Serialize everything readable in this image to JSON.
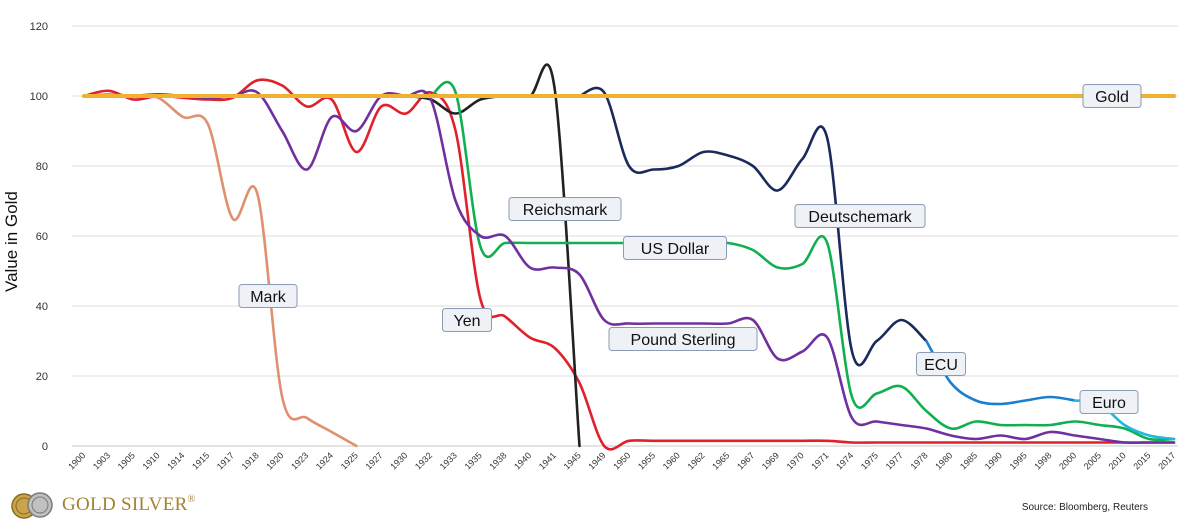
{
  "chart_data": {
    "type": "line",
    "ylabel": "Value in Gold",
    "ylim": [
      0,
      120
    ],
    "yticks": [
      0,
      20,
      40,
      60,
      80,
      100,
      120
    ],
    "grid": true,
    "x_categories": [
      "1900",
      "1903",
      "1905",
      "1910",
      "1914",
      "1915",
      "1917",
      "1918",
      "1920",
      "1923",
      "1924",
      "1925",
      "1927",
      "1930",
      "1932",
      "1933",
      "1935",
      "1938",
      "1940",
      "1941",
      "1945",
      "1949",
      "1950",
      "1955",
      "1960",
      "1962",
      "1965",
      "1967",
      "1969",
      "1970",
      "1971",
      "1974",
      "1975",
      "1977",
      "1978",
      "1980",
      "1985",
      "1990",
      "1995",
      "1998",
      "2000",
      "2005",
      "2010",
      "2015",
      "2017"
    ],
    "series": [
      {
        "name": "Gold",
        "color": "#f0b030",
        "labelPos": [
          1112,
          96
        ],
        "points": [
          [
            0,
            100
          ],
          [
            44,
            100
          ]
        ]
      },
      {
        "name": "Mark",
        "color": "#e09070",
        "labelPos": [
          268,
          296
        ],
        "points": [
          [
            0,
            100
          ],
          [
            1,
            100.5
          ],
          [
            2,
            100
          ],
          [
            3,
            99.5
          ],
          [
            4,
            94
          ],
          [
            5,
            92
          ],
          [
            6,
            65
          ],
          [
            7,
            72
          ],
          [
            8,
            14
          ],
          [
            9,
            8
          ],
          [
            10,
            4
          ],
          [
            11,
            0
          ]
        ]
      },
      {
        "name": "Yen",
        "color": "#e0202a",
        "labelPos": [
          467,
          320
        ],
        "points": [
          [
            0,
            100
          ],
          [
            1,
            101.5
          ],
          [
            2,
            99
          ],
          [
            3,
            100
          ],
          [
            4,
            99.5
          ],
          [
            5,
            99
          ],
          [
            6,
            99.5
          ],
          [
            7,
            104.5
          ],
          [
            8,
            103
          ],
          [
            9,
            97
          ],
          [
            10,
            99
          ],
          [
            11,
            84
          ],
          [
            12,
            97
          ],
          [
            13,
            95
          ],
          [
            14,
            101
          ],
          [
            15,
            90
          ],
          [
            16,
            42
          ],
          [
            17,
            37
          ],
          [
            18,
            31
          ],
          [
            19,
            28
          ],
          [
            20,
            18
          ],
          [
            21,
            0
          ],
          [
            22,
            1.5
          ],
          [
            23,
            1.5
          ],
          [
            24,
            1.5
          ],
          [
            25,
            1.5
          ],
          [
            26,
            1.5
          ],
          [
            27,
            1.5
          ],
          [
            28,
            1.5
          ],
          [
            29,
            1.5
          ],
          [
            30,
            1.5
          ],
          [
            31,
            1
          ],
          [
            32,
            1
          ],
          [
            33,
            1
          ],
          [
            34,
            1
          ],
          [
            35,
            1
          ],
          [
            36,
            1
          ],
          [
            37,
            1
          ],
          [
            38,
            1
          ],
          [
            39,
            1
          ],
          [
            40,
            1
          ],
          [
            41,
            1
          ],
          [
            42,
            1
          ],
          [
            43,
            1
          ],
          [
            44,
            1
          ]
        ]
      },
      {
        "name": "Reichsmark",
        "color": "#222222",
        "labelPos": [
          565,
          209
        ],
        "points": [
          [
            13,
            100
          ],
          [
            14,
            99
          ],
          [
            15,
            95
          ],
          [
            16,
            99
          ],
          [
            17,
            100
          ],
          [
            18,
            100
          ],
          [
            19,
            102
          ],
          [
            20,
            0
          ]
        ]
      },
      {
        "name": "US Dollar",
        "color": "#10b050",
        "labelPos": [
          675,
          248
        ],
        "points": [
          [
            14,
            100
          ],
          [
            15,
            101
          ],
          [
            16,
            57
          ],
          [
            17,
            58
          ],
          [
            18,
            58
          ],
          [
            19,
            58
          ],
          [
            20,
            58
          ],
          [
            21,
            58
          ],
          [
            22,
            58
          ],
          [
            23,
            58
          ],
          [
            24,
            58
          ],
          [
            25,
            58
          ],
          [
            26,
            58
          ],
          [
            27,
            56
          ],
          [
            28,
            51
          ],
          [
            29,
            52
          ],
          [
            30,
            58
          ],
          [
            31,
            14
          ],
          [
            32,
            15
          ],
          [
            33,
            17
          ],
          [
            34,
            10
          ],
          [
            35,
            5
          ],
          [
            36,
            7
          ],
          [
            37,
            6
          ],
          [
            38,
            6
          ],
          [
            39,
            6
          ],
          [
            40,
            7
          ],
          [
            41,
            6
          ],
          [
            42,
            5
          ],
          [
            43,
            2
          ],
          [
            44,
            2
          ]
        ]
      },
      {
        "name": "Deutschemark",
        "color": "#1a2a5c",
        "labelPos": [
          860,
          216
        ],
        "points": [
          [
            20,
            100
          ],
          [
            21,
            101
          ],
          [
            22,
            80
          ],
          [
            23,
            79
          ],
          [
            24,
            80
          ],
          [
            25,
            84
          ],
          [
            26,
            83
          ],
          [
            27,
            80
          ],
          [
            28,
            73
          ],
          [
            29,
            82
          ],
          [
            30,
            88
          ],
          [
            31,
            27
          ],
          [
            32,
            30
          ],
          [
            33,
            36
          ],
          [
            34,
            30
          ]
        ]
      },
      {
        "name": "Pound Sterling",
        "color": "#7030a0",
        "labelPos": [
          683,
          339
        ],
        "points": [
          [
            2,
            100
          ],
          [
            3,
            100.5
          ],
          [
            4,
            100
          ],
          [
            5,
            99.5
          ],
          [
            6,
            100
          ],
          [
            7,
            101
          ],
          [
            8,
            90
          ],
          [
            9,
            79
          ],
          [
            10,
            94
          ],
          [
            11,
            90
          ],
          [
            12,
            100
          ],
          [
            13,
            100
          ],
          [
            14,
            99
          ],
          [
            15,
            70
          ],
          [
            16,
            60
          ],
          [
            17,
            60
          ],
          [
            18,
            51
          ],
          [
            19,
            51
          ],
          [
            20,
            49
          ],
          [
            21,
            36
          ],
          [
            22,
            35
          ],
          [
            23,
            35
          ],
          [
            24,
            35
          ],
          [
            25,
            35
          ],
          [
            26,
            35
          ],
          [
            27,
            36
          ],
          [
            28,
            25
          ],
          [
            29,
            27
          ],
          [
            30,
            31
          ],
          [
            31,
            8
          ],
          [
            32,
            7
          ],
          [
            33,
            6
          ],
          [
            34,
            5
          ],
          [
            35,
            3
          ],
          [
            36,
            2
          ],
          [
            37,
            3
          ],
          [
            38,
            2
          ],
          [
            39,
            4
          ],
          [
            40,
            3
          ],
          [
            41,
            2
          ],
          [
            42,
            1
          ],
          [
            43,
            1
          ],
          [
            44,
            1
          ]
        ]
      },
      {
        "name": "ECU",
        "color": "#1a7fd0",
        "labelPos": [
          941,
          364
        ],
        "points": [
          [
            34,
            30
          ],
          [
            35,
            18
          ],
          [
            36,
            13
          ],
          [
            37,
            12
          ],
          [
            38,
            13
          ],
          [
            39,
            14
          ],
          [
            40,
            13
          ]
        ]
      },
      {
        "name": "Euro",
        "color": "#20b8e0",
        "labelPos": [
          1109,
          402
        ],
        "points": [
          [
            40,
            13
          ],
          [
            41,
            12
          ],
          [
            42,
            6
          ],
          [
            43,
            3
          ],
          [
            44,
            2
          ]
        ]
      }
    ]
  },
  "source": "Source: Bloomberg, Reuters",
  "logo": {
    "text": "GOLD SILVER",
    "mark": "®"
  }
}
